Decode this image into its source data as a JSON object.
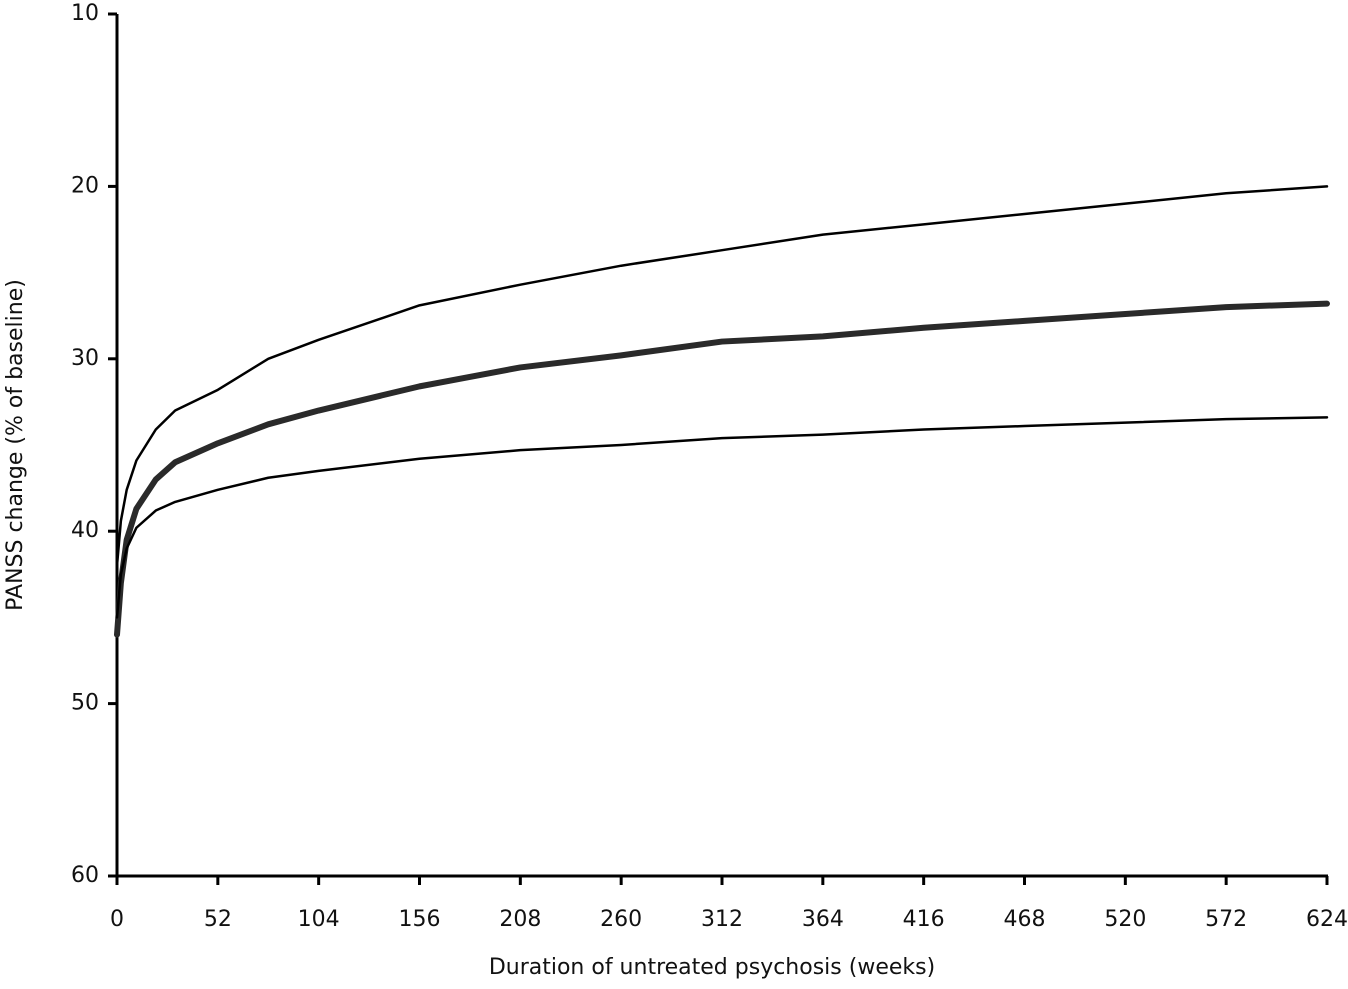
{
  "chart_data": {
    "type": "line",
    "x_label": "Duration of untreated psychosis (weeks)",
    "y_label": "PANSS change (% of baseline)",
    "x": [
      0,
      2,
      5,
      10,
      20,
      30,
      52,
      78,
      104,
      156,
      208,
      260,
      312,
      364,
      416,
      468,
      520,
      572,
      624
    ],
    "series": [
      {
        "color": "#000000",
        "line_width": 2.5,
        "values": [
          42,
          39.4,
          37.6,
          35.9,
          34.1,
          33.0,
          31.8,
          30.0,
          28.9,
          26.9,
          25.7,
          24.6,
          23.7,
          22.8,
          22.2,
          21.6,
          21.0,
          20.4,
          20.0
        ]
      },
      {
        "color": "#2a2a2a",
        "line_width": 6,
        "values": [
          46,
          43,
          40.5,
          38.7,
          37,
          36,
          34.9,
          33.8,
          33.0,
          31.6,
          30.5,
          29.8,
          29.0,
          28.7,
          28.2,
          27.8,
          27.4,
          27.0,
          26.8
        ]
      },
      {
        "color": "#000000",
        "line_width": 2.5,
        "values": [
          45,
          42.5,
          41,
          39.8,
          38.8,
          38.3,
          37.6,
          36.9,
          36.5,
          35.8,
          35.3,
          35.0,
          34.6,
          34.4,
          34.1,
          33.9,
          33.7,
          33.5,
          33.4
        ]
      }
    ],
    "xlim": [
      0,
      624
    ],
    "xticks": [
      0,
      52,
      104,
      156,
      208,
      260,
      312,
      364,
      416,
      468,
      520,
      572,
      624
    ],
    "ylim": [
      10,
      60
    ],
    "y_inverted": true,
    "yticks": [
      10,
      20,
      30,
      40,
      50,
      60
    ],
    "grid": false
  }
}
